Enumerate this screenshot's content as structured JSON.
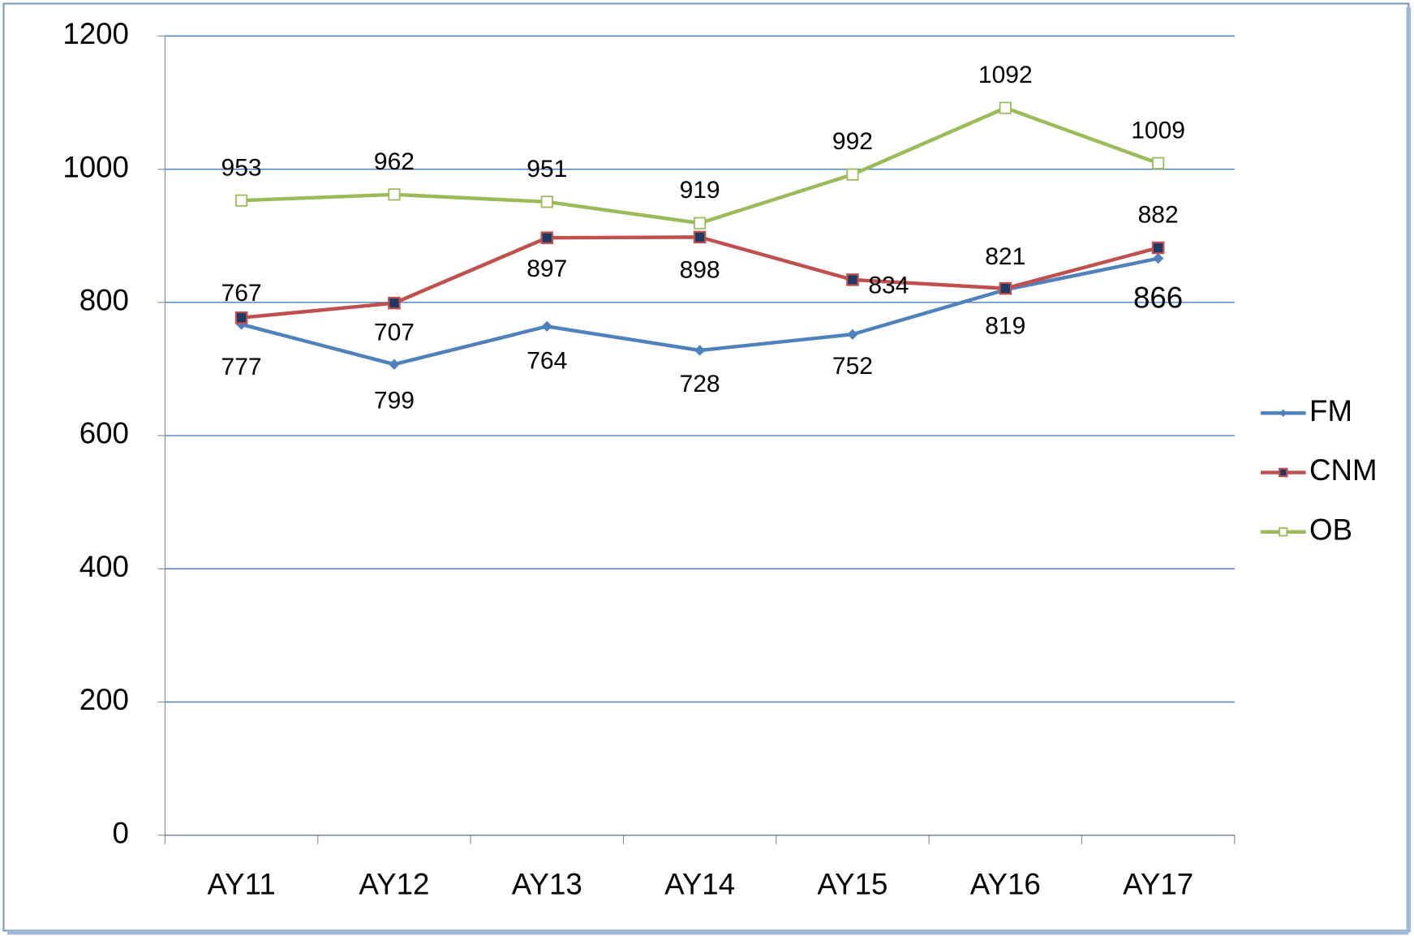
{
  "chart_data": {
    "type": "line",
    "categories": [
      "AY11",
      "AY12",
      "AY13",
      "AY14",
      "AY15",
      "AY16",
      "AY17"
    ],
    "series": [
      {
        "name": "FM",
        "color": "#4f81bd",
        "marker": "diamond",
        "values": [
          767,
          707,
          764,
          728,
          752,
          819,
          866
        ]
      },
      {
        "name": "CNM",
        "color": "#c0504d",
        "marker": "square",
        "values": [
          777,
          799,
          897,
          898,
          834,
          821,
          882
        ]
      },
      {
        "name": "OB",
        "color": "#9bbb59",
        "marker": "hollow-square",
        "values": [
          953,
          962,
          951,
          919,
          992,
          1092,
          1009
        ]
      }
    ],
    "ylim": [
      0,
      1200
    ],
    "yticks": [
      0,
      200,
      400,
      600,
      800,
      1000,
      1200
    ],
    "grid": true,
    "legend": "right"
  }
}
